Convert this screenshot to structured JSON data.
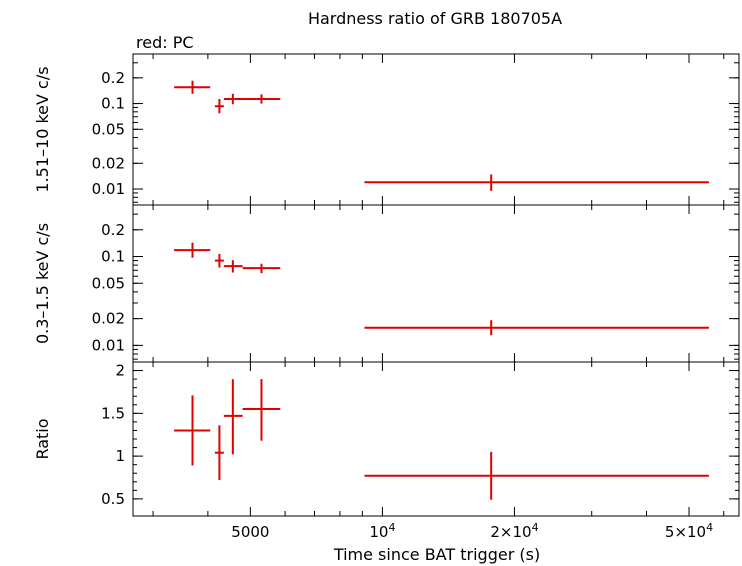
{
  "title": "Hardness ratio of GRB 180705A",
  "legend": "red: PC",
  "xlabel": "Time since BAT trigger (s)",
  "colors": {
    "series": "#e00000",
    "axes": "#000000"
  },
  "chart_data": {
    "type": "scatter",
    "title": "Hardness ratio of GRB 180705A",
    "xlabel": "Time since BAT trigger (s)",
    "x_scale": "log",
    "xlim": [
      2700,
      65000
    ],
    "x_ticks": [
      {
        "value": 5000,
        "label": "5000",
        "sup": ""
      },
      {
        "value": 10000,
        "label": "10",
        "sup": "4"
      },
      {
        "value": 20000,
        "label": "2×10",
        "sup": "4"
      },
      {
        "value": 50000,
        "label": "5×10",
        "sup": "4"
      }
    ],
    "panels": [
      {
        "name": "hard",
        "ylabel": "1.51–10 keV c/s",
        "y_scale": "log",
        "ylim": [
          0.0065,
          0.38
        ],
        "y_ticks": [
          {
            "value": 0.2,
            "label": "0.2"
          },
          {
            "value": 0.1,
            "label": "0.1"
          },
          {
            "value": 0.05,
            "label": "0.05"
          },
          {
            "value": 0.02,
            "label": "0.02"
          },
          {
            "value": 0.01,
            "label": "0.01"
          }
        ],
        "points": [
          {
            "x": 3690,
            "xlo": 3350,
            "xhi": 4050,
            "y": 0.155,
            "ylo": 0.13,
            "yhi": 0.185
          },
          {
            "x": 4250,
            "xlo": 4150,
            "xhi": 4350,
            "y": 0.093,
            "ylo": 0.077,
            "yhi": 0.113
          },
          {
            "x": 4560,
            "xlo": 4350,
            "xhi": 4800,
            "y": 0.113,
            "ylo": 0.098,
            "yhi": 0.13
          },
          {
            "x": 5300,
            "xlo": 4800,
            "xhi": 5850,
            "y": 0.113,
            "ylo": 0.1,
            "yhi": 0.128
          },
          {
            "x": 17700,
            "xlo": 9100,
            "xhi": 55500,
            "y": 0.012,
            "ylo": 0.0095,
            "yhi": 0.0148
          }
        ]
      },
      {
        "name": "soft",
        "ylabel": "0.3–1.5 keV c/s",
        "y_scale": "log",
        "ylim": [
          0.0065,
          0.38
        ],
        "y_ticks": [
          {
            "value": 0.2,
            "label": "0.2"
          },
          {
            "value": 0.1,
            "label": "0.1"
          },
          {
            "value": 0.05,
            "label": "0.05"
          },
          {
            "value": 0.02,
            "label": "0.02"
          },
          {
            "value": 0.01,
            "label": "0.01"
          }
        ],
        "points": [
          {
            "x": 3690,
            "xlo": 3350,
            "xhi": 4050,
            "y": 0.118,
            "ylo": 0.097,
            "yhi": 0.143
          },
          {
            "x": 4250,
            "xlo": 4150,
            "xhi": 4350,
            "y": 0.09,
            "ylo": 0.075,
            "yhi": 0.107
          },
          {
            "x": 4560,
            "xlo": 4350,
            "xhi": 4800,
            "y": 0.078,
            "ylo": 0.066,
            "yhi": 0.091
          },
          {
            "x": 5300,
            "xlo": 4800,
            "xhi": 5850,
            "y": 0.074,
            "ylo": 0.065,
            "yhi": 0.083
          },
          {
            "x": 17700,
            "xlo": 9100,
            "xhi": 55500,
            "y": 0.0158,
            "ylo": 0.013,
            "yhi": 0.0192
          }
        ]
      },
      {
        "name": "ratio",
        "ylabel": "Ratio",
        "y_scale": "linear",
        "ylim": [
          0.3,
          2.1
        ],
        "y_ticks": [
          {
            "value": 2,
            "label": "2"
          },
          {
            "value": 1.5,
            "label": "1.5"
          },
          {
            "value": 1,
            "label": "1"
          },
          {
            "value": 0.5,
            "label": "0.5"
          }
        ],
        "points": [
          {
            "x": 3690,
            "xlo": 3350,
            "xhi": 4050,
            "y": 1.3,
            "ylo": 0.89,
            "yhi": 1.71
          },
          {
            "x": 4250,
            "xlo": 4150,
            "xhi": 4350,
            "y": 1.04,
            "ylo": 0.72,
            "yhi": 1.36
          },
          {
            "x": 4560,
            "xlo": 4350,
            "xhi": 4800,
            "y": 1.47,
            "ylo": 1.02,
            "yhi": 1.9
          },
          {
            "x": 5300,
            "xlo": 4800,
            "xhi": 5850,
            "y": 1.55,
            "ylo": 1.18,
            "yhi": 1.9
          },
          {
            "x": 17700,
            "xlo": 9100,
            "xhi": 55500,
            "y": 0.77,
            "ylo": 0.49,
            "yhi": 1.05
          }
        ]
      }
    ]
  }
}
